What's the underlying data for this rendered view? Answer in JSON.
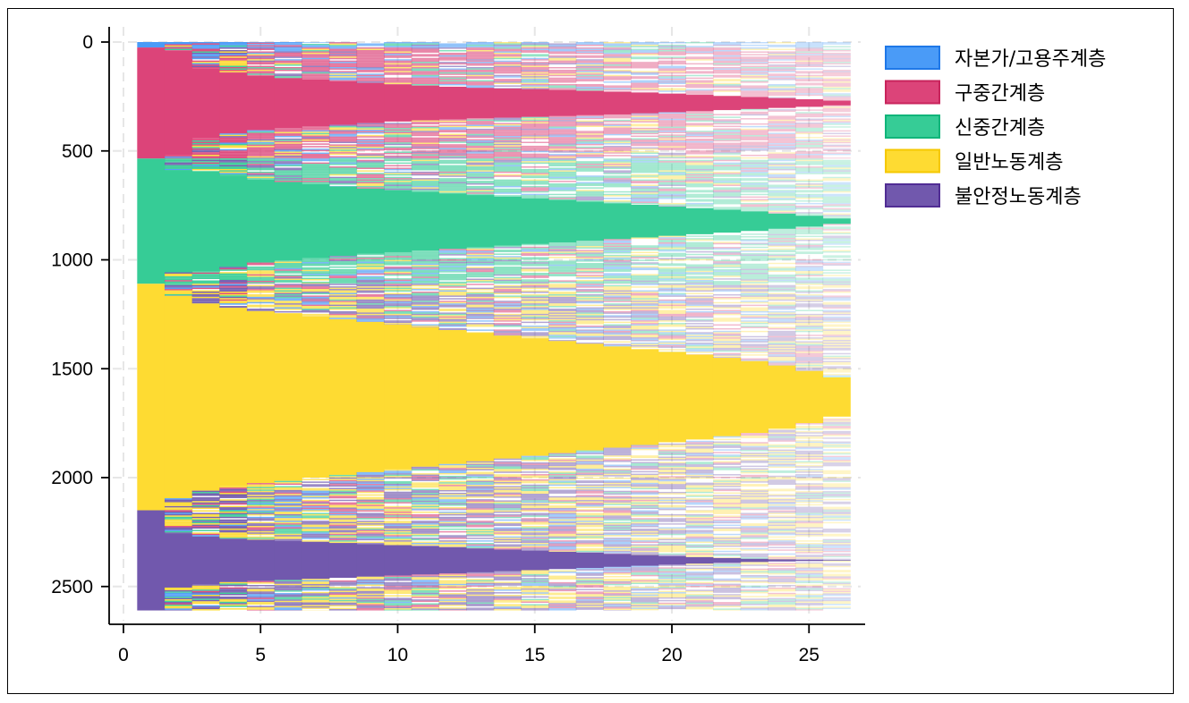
{
  "chart_data": {
    "type": "sequence-index",
    "title": "",
    "xlabel": "",
    "ylabel": "",
    "xlim": [
      -0.5,
      27
    ],
    "ylim": [
      0,
      2650
    ],
    "y_reversed": true,
    "grid": "dashed",
    "x_ticks": [
      0,
      5,
      10,
      15,
      20,
      25
    ],
    "y_ticks": [
      0,
      500,
      1000,
      1500,
      2000,
      2500
    ],
    "x_tick_labels": [
      "0",
      "5",
      "10",
      "15",
      "20",
      "25"
    ],
    "y_tick_labels": [
      "0",
      "500",
      "1000",
      "1500",
      "2000",
      "2500"
    ],
    "time_points": [
      1,
      26
    ],
    "n_sequences": 2610,
    "legend_position": "right",
    "states": [
      {
        "name": "자본가/고용주계층",
        "color": "#4a9bf7",
        "border": "#1f78e8"
      },
      {
        "name": "구중간계층",
        "color": "#dc4479",
        "border": "#c8245c"
      },
      {
        "name": "신중간계층",
        "color": "#36cc96",
        "border": "#10b57a"
      },
      {
        "name": "일반노동계층",
        "color": "#fedb32",
        "border": "#f5c800"
      },
      {
        "name": "불안정노동계층",
        "color": "#7158ad",
        "border": "#512d94"
      }
    ],
    "groups": [
      {
        "state": 0,
        "start": 0,
        "end": 25,
        "stay_rows_by_t": [
          25,
          10,
          6,
          4,
          3,
          2,
          2,
          1
        ]
      },
      {
        "state": 1,
        "start": 25,
        "end": 535,
        "stay_rows_by_t": [
          510,
          480,
          320,
          280,
          250,
          230,
          215,
          200,
          185,
          170,
          160,
          150,
          140,
          135,
          128,
          120,
          112,
          105,
          95,
          85,
          75,
          65,
          55,
          45,
          35,
          22
        ]
      },
      {
        "state": 2,
        "start": 535,
        "end": 1110,
        "stay_rows_by_t": [
          575,
          470,
          460,
          420,
          380,
          360,
          340,
          320,
          300,
          285,
          270,
          255,
          240,
          225,
          210,
          195,
          180,
          165,
          150,
          135,
          120,
          105,
          90,
          70,
          50,
          25
        ]
      },
      {
        "state": 3,
        "start": 1110,
        "end": 2150,
        "stay_rows_by_t": [
          1040,
          930,
          860,
          820,
          790,
          770,
          740,
          715,
          690,
          665,
          640,
          615,
          590,
          565,
          540,
          515,
          490,
          465,
          440,
          415,
          390,
          360,
          330,
          290,
          240,
          180
        ]
      },
      {
        "state": 4,
        "start": 2150,
        "end": 2610,
        "stay_rows_by_t": [
          460,
          250,
          220,
          200,
          190,
          180,
          170,
          160,
          150,
          140,
          130,
          120,
          110,
          100,
          90,
          80,
          70,
          60,
          50,
          40,
          30,
          22,
          15,
          10,
          6,
          3
        ]
      }
    ]
  }
}
